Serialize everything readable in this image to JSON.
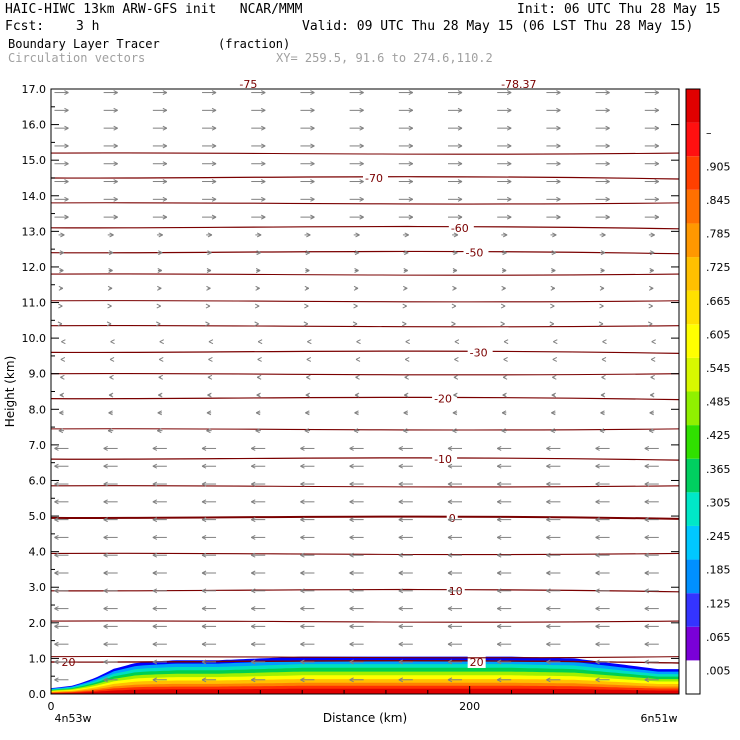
{
  "header": {
    "title": "HAIC-HIWC 13km ARW-GFS init   NCAR/MMM",
    "init": "Init: 06 UTC Thu 28 May 15",
    "fcst_label": "Fcst:",
    "fcst_value": "3 h",
    "valid": "Valid: 09 UTC Thu 28 May 15 (06 LST Thu 28 May 15)",
    "field": "Boundary Layer Tracer",
    "units": "(fraction)",
    "vectors": "Circulation vectors",
    "xy": "XY= 259.5, 91.6 to 274.6,110.2"
  },
  "chart_data": {
    "type": "heatmap",
    "title": "Boundary Layer Tracer (fraction)",
    "xlabel": "Distance (km)",
    "ylabel": "Height (km)",
    "xlim": [
      0,
      300
    ],
    "ylim": [
      0,
      17
    ],
    "x_ticks": [
      0,
      200
    ],
    "x_tick_labels": [
      "0",
      "200"
    ],
    "x_end_labels": [
      "4n53w",
      "6n51w"
    ],
    "y_ticks": [
      0.0,
      1.0,
      2.0,
      3.0,
      4.0,
      5.0,
      6.0,
      7.0,
      8.0,
      9.0,
      10.0,
      11.0,
      12.0,
      13.0,
      14.0,
      15.0,
      16.0,
      17.0
    ],
    "y_tick_labels": [
      "0.0",
      "1.0",
      "2.0",
      "3.0",
      "4.0",
      "5.0",
      "6.0",
      "7.0",
      "8.0",
      "9.0",
      "10.0",
      "11.0",
      "12.0",
      "13.0",
      "14.0",
      "15.0",
      "16.0",
      "17.0"
    ],
    "colorbar_labels": [
      ".005",
      ".065",
      ".125",
      ".185",
      ".245",
      ".305",
      ".365",
      ".425",
      ".485",
      ".545",
      ".605",
      ".665",
      ".725",
      ".785",
      ".845",
      ".905",
      "–"
    ],
    "colorbar_colors": [
      "#ffffff",
      "#7a00d8",
      "#3434ff",
      "#0090ff",
      "#00c8ff",
      "#00e8c8",
      "#00d060",
      "#30e000",
      "#90f000",
      "#d8f800",
      "#ffff00",
      "#ffe000",
      "#ffc000",
      "#ff9800",
      "#ff7000",
      "#ff4000",
      "#ff1010",
      "#e00000"
    ],
    "tracer_layer": {
      "top_km": [
        0.3,
        0.35,
        0.55,
        0.8,
        0.9,
        0.95,
        0.95,
        1.0,
        1.05,
        1.05,
        1.05,
        1.05,
        1.05,
        1.05,
        1.0,
        0.85,
        0.7,
        0.7
      ],
      "x_km": [
        0,
        10,
        20,
        30,
        45,
        60,
        80,
        100,
        120,
        140,
        160,
        180,
        200,
        220,
        250,
        270,
        290,
        300
      ]
    },
    "isotherms": [
      {
        "label": "20",
        "height_km": 0.9,
        "label_x_km": 5
      },
      {
        "label": "20",
        "height_km": 0.9,
        "label_x_km": 200
      },
      {
        "label": "10",
        "height_km": 2.9,
        "label_x_km": 190
      },
      {
        "label": "0",
        "height_km": 4.95,
        "label_x_km": 190
      },
      {
        "label": "-10",
        "height_km": 6.6,
        "label_x_km": 183
      },
      {
        "label": "-20",
        "height_km": 8.3,
        "label_x_km": 183
      },
      {
        "label": "-30",
        "height_km": 9.6,
        "label_x_km": 200
      },
      {
        "label": "-50",
        "height_km": 12.4,
        "label_x_km": 198
      },
      {
        "label": "-60",
        "height_km": 13.1,
        "label_x_km": 191
      },
      {
        "label": "-70",
        "height_km": 14.5,
        "label_x_km": 150
      },
      {
        "label": "-75",
        "height_km": 17.0,
        "label_x_km": 90
      },
      {
        "label": "-78.37",
        "height_km": 17.0,
        "label_x_km": 215
      }
    ],
    "unlabeled_contours_km": [
      1.05,
      2.05,
      3.95,
      5.85,
      7.45,
      9.0,
      10.35,
      11.05,
      11.8,
      13.8,
      15.2
    ],
    "circulation_vectors": "near-surface easterly (leftward) flow below 7 km, westerly (rightward) flow above 13 km"
  }
}
